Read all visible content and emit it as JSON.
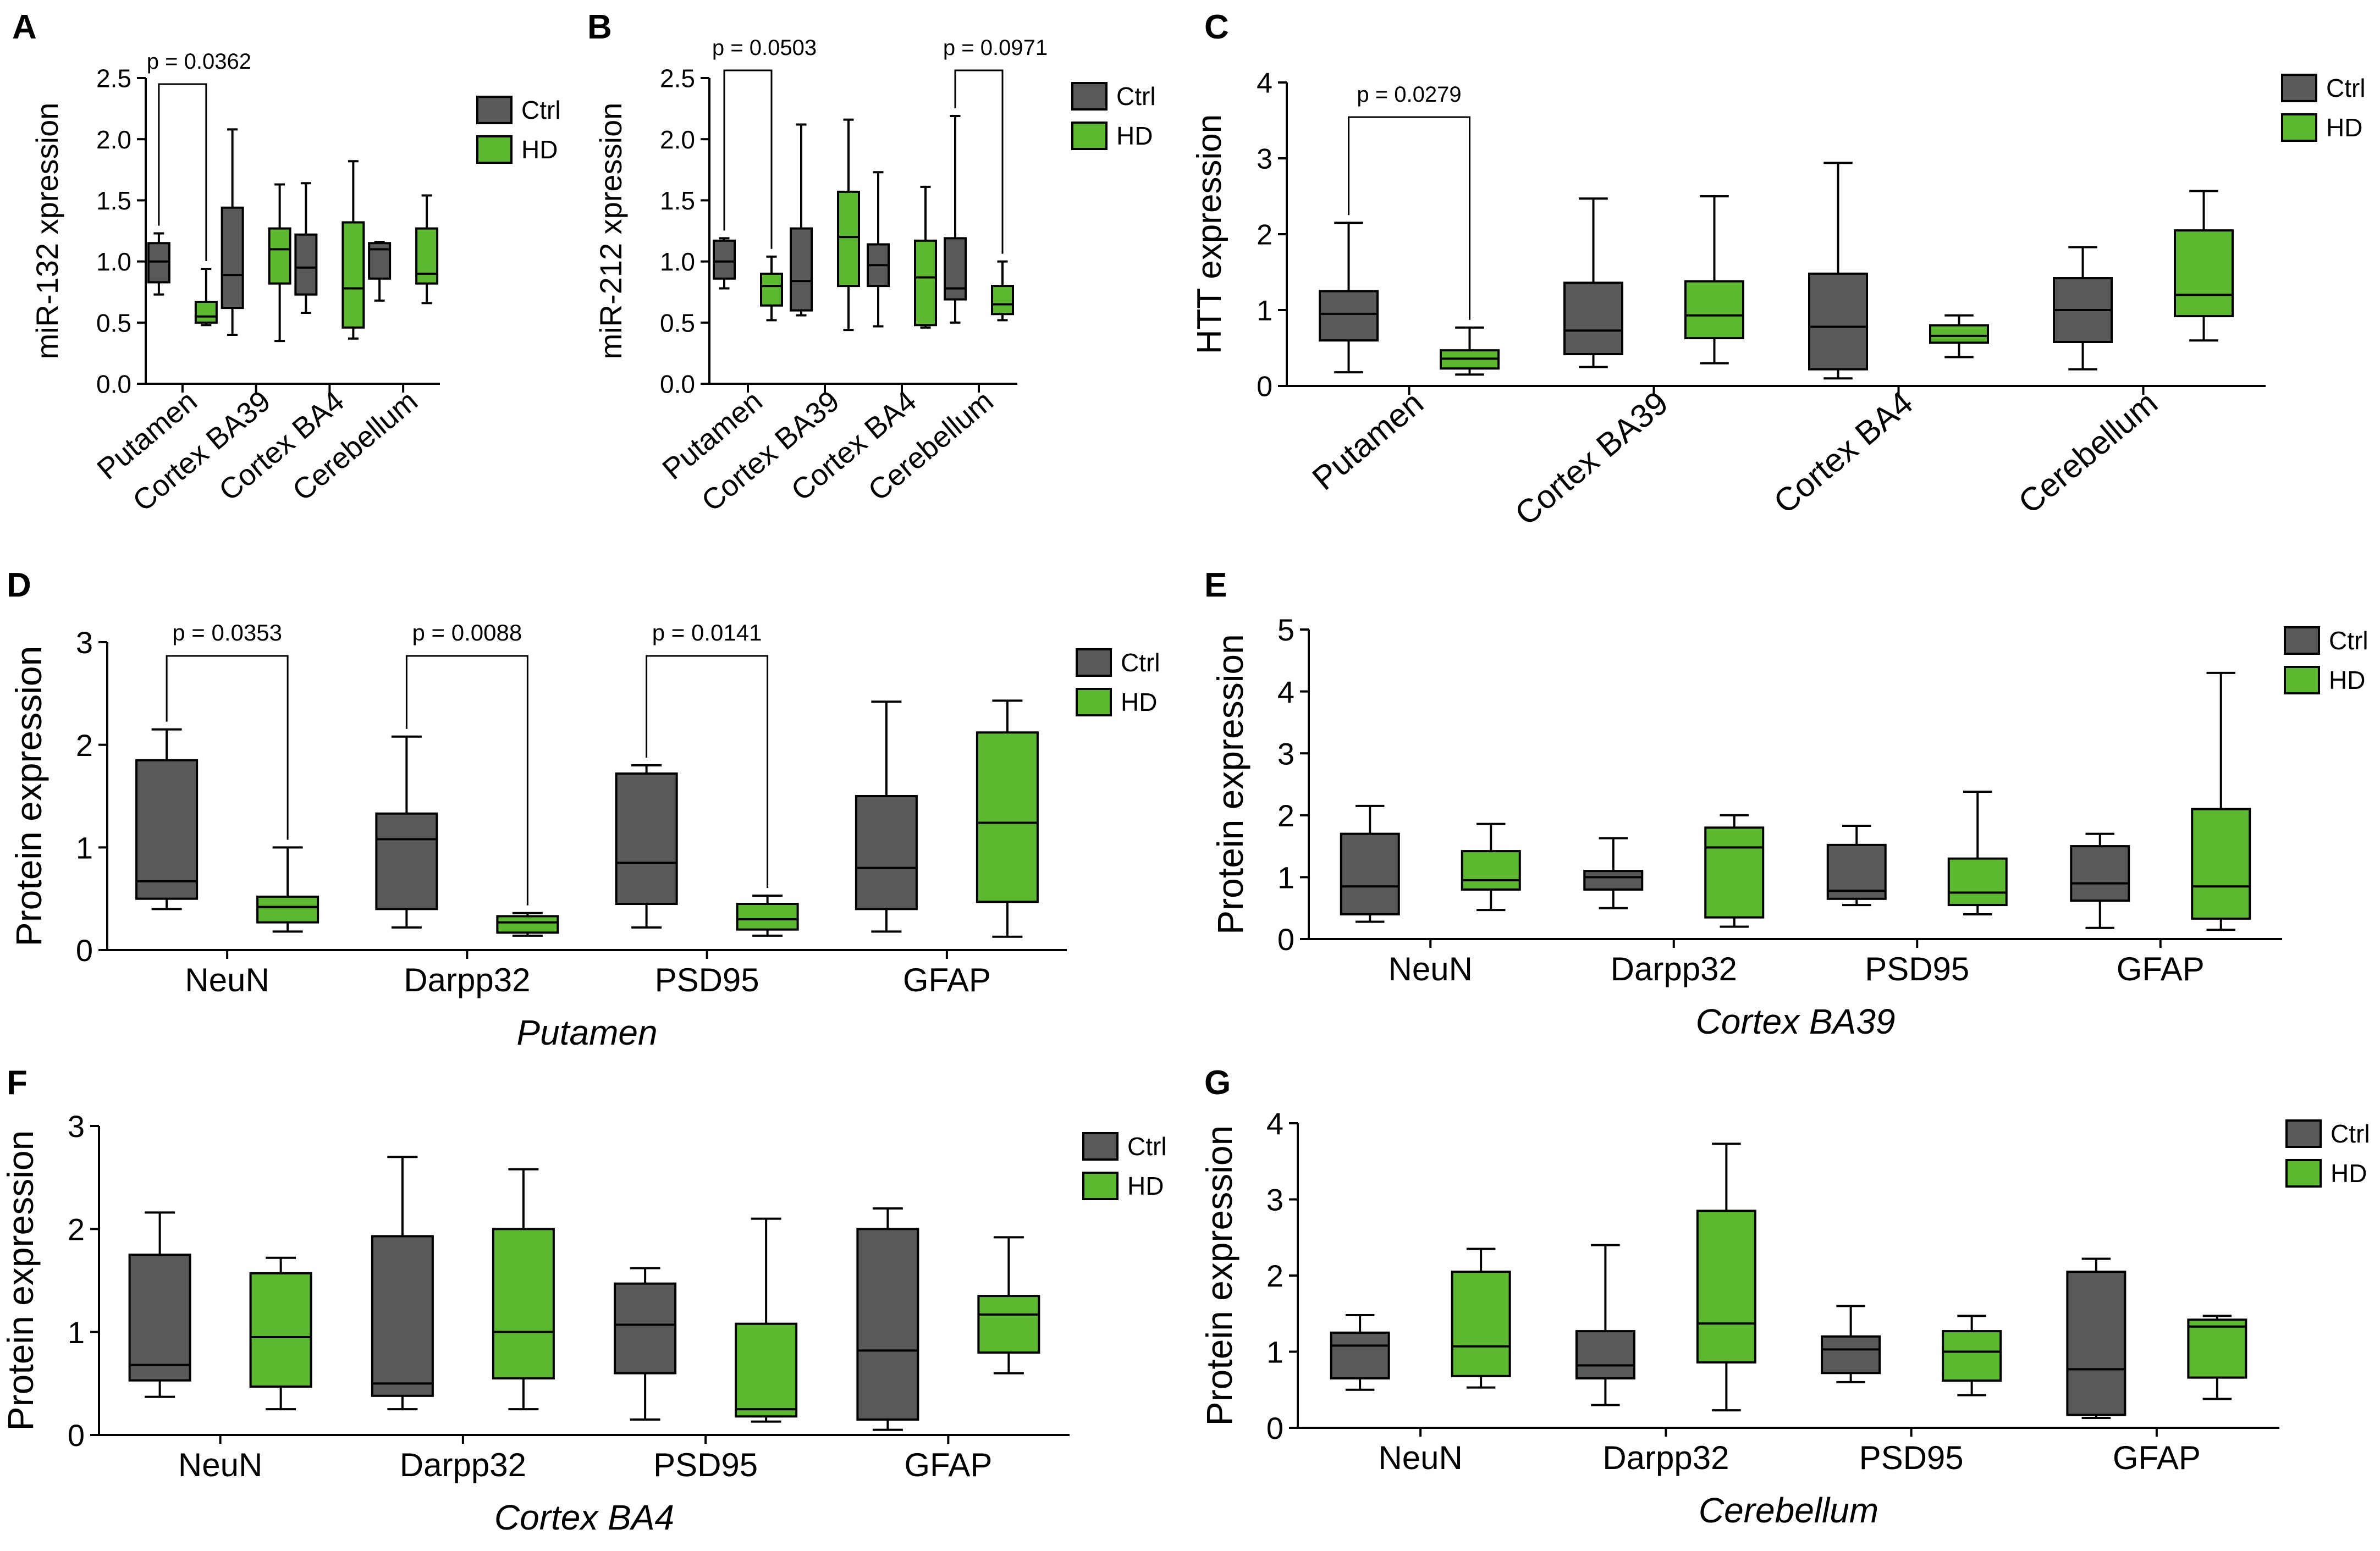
{
  "figure": {
    "colors": {
      "ctrl": "#58595b",
      "hd": "#5cb82e",
      "line": "#000000"
    },
    "legend_labels": {
      "ctrl": "Ctrl",
      "hd": "HD"
    }
  },
  "chart_data": [
    {
      "panel": "A",
      "type": "boxplot",
      "ylabel": "miR-132 xpression",
      "xlabel": "",
      "ylim": [
        0,
        2.5
      ],
      "yticks": [
        "0.0",
        "0.5",
        "1.0",
        "1.5",
        "2.0",
        "2.5"
      ],
      "rotated_labels": true,
      "categories": [
        "Putamen",
        "Cortex BA39",
        "Cortex BA4",
        "Cerebellum"
      ],
      "series": [
        {
          "name": "Ctrl",
          "boxes": [
            {
              "min": 0.73,
              "q1": 0.83,
              "median": 1.0,
              "q3": 1.15,
              "max": 1.23
            },
            {
              "min": 0.4,
              "q1": 0.62,
              "median": 0.89,
              "q3": 1.44,
              "max": 2.08
            },
            {
              "min": 0.58,
              "q1": 0.73,
              "median": 0.95,
              "q3": 1.22,
              "max": 1.64
            },
            {
              "min": 0.68,
              "q1": 0.86,
              "median": 1.1,
              "q3": 1.15,
              "max": 1.16
            }
          ]
        },
        {
          "name": "HD",
          "boxes": [
            {
              "min": 0.48,
              "q1": 0.5,
              "median": 0.55,
              "q3": 0.67,
              "max": 0.94
            },
            {
              "min": 0.35,
              "q1": 0.82,
              "median": 1.1,
              "q3": 1.27,
              "max": 1.63
            },
            {
              "min": 0.37,
              "q1": 0.46,
              "median": 0.78,
              "q3": 1.32,
              "max": 1.82
            },
            {
              "min": 0.66,
              "q1": 0.82,
              "median": 0.9,
              "q3": 1.27,
              "max": 1.54
            }
          ]
        }
      ],
      "annotations": [
        {
          "text": "p = 0.0362",
          "group": 0
        }
      ]
    },
    {
      "panel": "B",
      "type": "boxplot",
      "ylabel": "miR-212 xpression",
      "xlabel": "",
      "ylim": [
        0,
        2.5
      ],
      "yticks": [
        "0.0",
        "0.5",
        "1.0",
        "1.5",
        "2.0",
        "2.5"
      ],
      "rotated_labels": true,
      "categories": [
        "Putamen",
        "Cortex BA39",
        "Cortex BA4",
        "Cerebellum"
      ],
      "series": [
        {
          "name": "Ctrl",
          "boxes": [
            {
              "min": 0.78,
              "q1": 0.86,
              "median": 1.0,
              "q3": 1.17,
              "max": 1.19
            },
            {
              "min": 0.56,
              "q1": 0.6,
              "median": 0.84,
              "q3": 1.27,
              "max": 2.12
            },
            {
              "min": 0.47,
              "q1": 0.8,
              "median": 0.97,
              "q3": 1.14,
              "max": 1.73
            },
            {
              "min": 0.5,
              "q1": 0.69,
              "median": 0.78,
              "q3": 1.19,
              "max": 2.19
            }
          ]
        },
        {
          "name": "HD",
          "boxes": [
            {
              "min": 0.52,
              "q1": 0.64,
              "median": 0.8,
              "q3": 0.9,
              "max": 1.04
            },
            {
              "min": 0.44,
              "q1": 0.8,
              "median": 1.2,
              "q3": 1.57,
              "max": 2.16
            },
            {
              "min": 0.46,
              "q1": 0.48,
              "median": 0.87,
              "q3": 1.17,
              "max": 1.61
            },
            {
              "min": 0.52,
              "q1": 0.57,
              "median": 0.65,
              "q3": 0.8,
              "max": 1.0
            }
          ]
        }
      ],
      "annotations": [
        {
          "text": "p = 0.0503",
          "group": 0
        },
        {
          "text": "p = 0.0971",
          "group": 3
        }
      ]
    },
    {
      "panel": "C",
      "type": "boxplot",
      "ylabel": "HTT expression",
      "xlabel": "",
      "ylim": [
        0,
        4
      ],
      "yticks": [
        "0",
        "1",
        "2",
        "3",
        "4"
      ],
      "rotated_labels": true,
      "categories": [
        "Putamen",
        "Cortex BA39",
        "Cortex BA4",
        "Cerebellum"
      ],
      "series": [
        {
          "name": "Ctrl",
          "boxes": [
            {
              "min": 0.18,
              "q1": 0.6,
              "median": 0.95,
              "q3": 1.25,
              "max": 2.15
            },
            {
              "min": 0.25,
              "q1": 0.42,
              "median": 0.73,
              "q3": 1.36,
              "max": 2.47
            },
            {
              "min": 0.1,
              "q1": 0.22,
              "median": 0.78,
              "q3": 1.48,
              "max": 2.94
            },
            {
              "min": 0.22,
              "q1": 0.58,
              "median": 1.0,
              "q3": 1.42,
              "max": 1.83
            }
          ]
        },
        {
          "name": "HD",
          "boxes": [
            {
              "min": 0.15,
              "q1": 0.23,
              "median": 0.36,
              "q3": 0.47,
              "max": 0.77
            },
            {
              "min": 0.3,
              "q1": 0.63,
              "median": 0.93,
              "q3": 1.38,
              "max": 2.5
            },
            {
              "min": 0.38,
              "q1": 0.57,
              "median": 0.66,
              "q3": 0.8,
              "max": 0.93
            },
            {
              "min": 0.6,
              "q1": 0.92,
              "median": 1.2,
              "q3": 2.05,
              "max": 2.57
            }
          ]
        }
      ],
      "annotations": [
        {
          "text": "p = 0.0279",
          "group": 0
        }
      ]
    },
    {
      "panel": "D",
      "type": "boxplot",
      "ylabel": "Protein expression",
      "xlabel": "Putamen",
      "ylim": [
        0,
        3
      ],
      "yticks": [
        "0",
        "1",
        "2",
        "3"
      ],
      "rotated_labels": false,
      "categories": [
        "NeuN",
        "Darpp32",
        "PSD95",
        "GFAP"
      ],
      "series": [
        {
          "name": "Ctrl",
          "boxes": [
            {
              "min": 0.4,
              "q1": 0.5,
              "median": 0.67,
              "q3": 1.85,
              "max": 2.15
            },
            {
              "min": 0.22,
              "q1": 0.4,
              "median": 1.08,
              "q3": 1.33,
              "max": 2.08
            },
            {
              "min": 0.22,
              "q1": 0.45,
              "median": 0.85,
              "q3": 1.72,
              "max": 1.8
            },
            {
              "min": 0.18,
              "q1": 0.4,
              "median": 0.8,
              "q3": 1.5,
              "max": 2.42
            }
          ]
        },
        {
          "name": "HD",
          "boxes": [
            {
              "min": 0.18,
              "q1": 0.27,
              "median": 0.42,
              "q3": 0.52,
              "max": 1.0
            },
            {
              "min": 0.14,
              "q1": 0.17,
              "median": 0.27,
              "q3": 0.33,
              "max": 0.36
            },
            {
              "min": 0.14,
              "q1": 0.2,
              "median": 0.3,
              "q3": 0.45,
              "max": 0.53
            },
            {
              "min": 0.13,
              "q1": 0.47,
              "median": 1.24,
              "q3": 2.12,
              "max": 2.43
            }
          ]
        }
      ],
      "annotations": [
        {
          "text": "p = 0.0353",
          "group": 0
        },
        {
          "text": "p = 0.0088",
          "group": 1
        },
        {
          "text": "p = 0.0141",
          "group": 2
        }
      ]
    },
    {
      "panel": "E",
      "type": "boxplot",
      "ylabel": "Protein expression",
      "xlabel": "Cortex BA39",
      "ylim": [
        0,
        5
      ],
      "yticks": [
        "0",
        "1",
        "2",
        "3",
        "4",
        "5"
      ],
      "rotated_labels": false,
      "categories": [
        "NeuN",
        "Darpp32",
        "PSD95",
        "GFAP"
      ],
      "series": [
        {
          "name": "Ctrl",
          "boxes": [
            {
              "min": 0.28,
              "q1": 0.4,
              "median": 0.85,
              "q3": 1.7,
              "max": 2.15
            },
            {
              "min": 0.5,
              "q1": 0.8,
              "median": 1.0,
              "q3": 1.1,
              "max": 1.63
            },
            {
              "min": 0.55,
              "q1": 0.65,
              "median": 0.78,
              "q3": 1.52,
              "max": 1.83
            },
            {
              "min": 0.18,
              "q1": 0.62,
              "median": 0.9,
              "q3": 1.5,
              "max": 1.7
            }
          ]
        },
        {
          "name": "HD",
          "boxes": [
            {
              "min": 0.47,
              "q1": 0.8,
              "median": 0.95,
              "q3": 1.42,
              "max": 1.86
            },
            {
              "min": 0.2,
              "q1": 0.35,
              "median": 1.48,
              "q3": 1.8,
              "max": 2.0
            },
            {
              "min": 0.4,
              "q1": 0.55,
              "median": 0.75,
              "q3": 1.3,
              "max": 2.38
            },
            {
              "min": 0.15,
              "q1": 0.33,
              "median": 0.85,
              "q3": 2.1,
              "max": 4.3
            }
          ]
        }
      ],
      "annotations": []
    },
    {
      "panel": "F",
      "type": "boxplot",
      "ylabel": "Protein expression",
      "xlabel": "Cortex BA4",
      "ylim": [
        0,
        3
      ],
      "yticks": [
        "0",
        "1",
        "2",
        "3"
      ],
      "rotated_labels": false,
      "categories": [
        "NeuN",
        "Darpp32",
        "PSD95",
        "GFAP"
      ],
      "series": [
        {
          "name": "Ctrl",
          "boxes": [
            {
              "min": 0.37,
              "q1": 0.53,
              "median": 0.68,
              "q3": 1.75,
              "max": 2.16
            },
            {
              "min": 0.25,
              "q1": 0.38,
              "median": 0.5,
              "q3": 1.93,
              "max": 2.7
            },
            {
              "min": 0.15,
              "q1": 0.6,
              "median": 1.07,
              "q3": 1.47,
              "max": 1.62
            },
            {
              "min": 0.05,
              "q1": 0.15,
              "median": 0.82,
              "q3": 2.0,
              "max": 2.2
            }
          ]
        },
        {
          "name": "HD",
          "boxes": [
            {
              "min": 0.25,
              "q1": 0.47,
              "median": 0.95,
              "q3": 1.57,
              "max": 1.72
            },
            {
              "min": 0.25,
              "q1": 0.55,
              "median": 1.0,
              "q3": 2.0,
              "max": 2.58
            },
            {
              "min": 0.13,
              "q1": 0.18,
              "median": 0.25,
              "q3": 1.08,
              "max": 2.1
            },
            {
              "min": 0.6,
              "q1": 0.8,
              "median": 1.17,
              "q3": 1.35,
              "max": 1.92
            }
          ]
        }
      ],
      "annotations": []
    },
    {
      "panel": "G",
      "type": "boxplot",
      "ylabel": "Protein expression",
      "xlabel": "Cerebellum",
      "ylim": [
        0,
        4
      ],
      "yticks": [
        "0",
        "1",
        "2",
        "3",
        "4"
      ],
      "rotated_labels": false,
      "categories": [
        "NeuN",
        "Darpp32",
        "PSD95",
        "GFAP"
      ],
      "series": [
        {
          "name": "Ctrl",
          "boxes": [
            {
              "min": 0.5,
              "q1": 0.65,
              "median": 1.08,
              "q3": 1.25,
              "max": 1.48
            },
            {
              "min": 0.3,
              "q1": 0.65,
              "median": 0.82,
              "q3": 1.27,
              "max": 2.4
            },
            {
              "min": 0.6,
              "q1": 0.72,
              "median": 1.03,
              "q3": 1.2,
              "max": 1.6
            },
            {
              "min": 0.13,
              "q1": 0.17,
              "median": 0.77,
              "q3": 2.05,
              "max": 2.22
            }
          ]
        },
        {
          "name": "HD",
          "boxes": [
            {
              "min": 0.53,
              "q1": 0.68,
              "median": 1.07,
              "q3": 2.05,
              "max": 2.35
            },
            {
              "min": 0.23,
              "q1": 0.86,
              "median": 1.37,
              "q3": 2.85,
              "max": 3.73
            },
            {
              "min": 0.43,
              "q1": 0.62,
              "median": 1.0,
              "q3": 1.27,
              "max": 1.47
            },
            {
              "min": 0.38,
              "q1": 0.66,
              "median": 1.33,
              "q3": 1.42,
              "max": 1.47
            }
          ]
        }
      ],
      "annotations": []
    }
  ]
}
